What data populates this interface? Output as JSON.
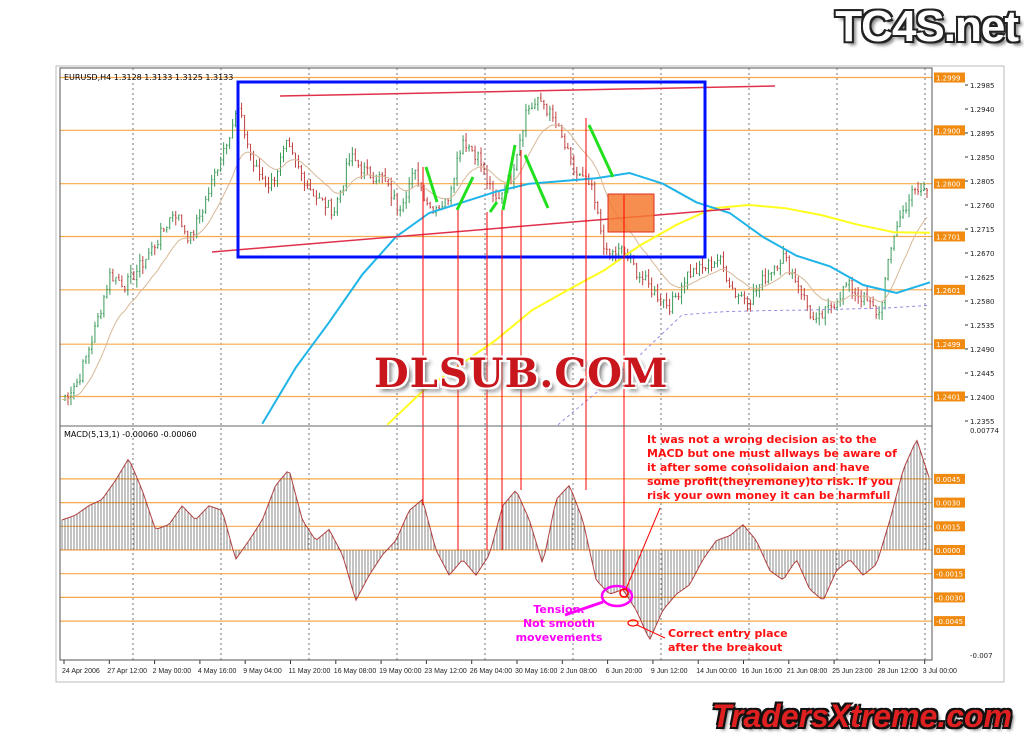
{
  "logos": {
    "top": "TC4S.net",
    "middle": "DLSUB.COM",
    "bottom": "TradersXtreme.com"
  },
  "colors": {
    "bullish": "#3a9a5a",
    "bearish": "#c04040",
    "ma_cyan": "#1fb4e8",
    "ma_yellow": "#ffff20",
    "ma_tan": "#d8b898",
    "ma_purple": "#9a8ae0",
    "level": "#f7a84a",
    "annotation_red": "#ff0000",
    "box_blue": "#0010ff",
    "green_strokes": "#22e020",
    "magenta": "#ff00ff",
    "highlight_box": "#f47a30"
  },
  "chart_data": [
    {
      "type": "candlestick",
      "title": "EURUSD,H4  1.3128 1.3133 1.3125 1.3133",
      "ylim": [
        1.234,
        1.301
      ],
      "y_ticks": [
        "1.2985",
        "1.2940",
        "1.2895",
        "1.2850",
        "1.2805",
        "1.2760",
        "1.2715",
        "1.2670",
        "1.2625",
        "1.2580",
        "1.2535",
        "1.2490",
        "1.2445",
        "1.2400",
        "1.2355"
      ],
      "level_labels": [
        "1.2999",
        "1.2900",
        "1.2800",
        "1.2701",
        "1.2601",
        "1.2499",
        "1.2401"
      ],
      "x_tick_labels": [
        "24 Apr 2006",
        "27 Apr 12:00",
        "2 May 00:00",
        "4 May 16:00",
        "9 May 04:00",
        "11 May 20:00",
        "16 May 08:00",
        "19 May 00:00",
        "23 May 12:00",
        "26 May 04:00",
        "30 May 16:00",
        "2 Jun 08:00",
        "6 Jun 20:00",
        "9 Jun 12:00",
        "14 Jun 00:00",
        "16 Jun 16:00",
        "21 Jun 08:00",
        "25 Jun 23:00",
        "28 Jun 12:00",
        "3 Jul 00:00"
      ],
      "close_samples": [
        1.2395,
        1.243,
        1.252,
        1.263,
        1.261,
        1.265,
        1.2695,
        1.275,
        1.2695,
        1.277,
        1.286,
        1.294,
        1.283,
        1.2795,
        1.287,
        1.2815,
        1.277,
        1.275,
        1.285,
        1.282,
        1.281,
        1.2755,
        1.282,
        1.2755,
        1.2765,
        1.2885,
        1.285,
        1.2765,
        1.281,
        1.294,
        1.2955,
        1.29,
        1.282,
        1.2795,
        1.2665,
        1.2675,
        1.263,
        1.2595,
        1.257,
        1.263,
        1.264,
        1.266,
        1.2595,
        1.2585,
        1.263,
        1.2665,
        1.261,
        1.2535,
        1.257,
        1.261,
        1.2585,
        1.2555,
        1.2715,
        1.278,
        1.279
      ],
      "ma_cyan": [
        null,
        null,
        null,
        null,
        null,
        null,
        1.235,
        1.2455,
        1.254,
        1.263,
        1.27,
        1.2745,
        1.2765,
        1.2785,
        1.28,
        1.2805,
        1.281,
        1.282,
        1.28,
        1.2765,
        1.2745,
        1.27,
        1.2665,
        1.2645,
        1.261,
        1.2595,
        1.2615
      ],
      "ma_yellow": [
        null,
        null,
        null,
        null,
        null,
        null,
        null,
        null,
        null,
        1.2348,
        1.2413,
        1.246,
        1.2507,
        1.2563,
        1.2601,
        1.2638,
        1.2685,
        1.2723,
        1.2754,
        1.276,
        1.2754,
        1.2741,
        1.2723,
        1.2709,
        1.2708
      ],
      "ma_purple": [
        null,
        null,
        null,
        null,
        null,
        null,
        null,
        null,
        null,
        null,
        null,
        null,
        1.2348,
        1.2413,
        1.248,
        1.2554,
        1.256,
        1.2562,
        1.2563,
        1.2565,
        1.2567,
        1.2572
      ]
    },
    {
      "type": "bar",
      "title": "MACD(5,13,1) -0.00060 -0.00060",
      "ylim": [
        -0.007,
        0.00774
      ],
      "y_tick_top": "0.00774",
      "y_tick_bottom": "-0.007",
      "level_labels": [
        "0.0045",
        "0.0030",
        "0.0015",
        "0.0000",
        "-0.0015",
        "-0.0030",
        "-0.0045"
      ],
      "values": [
        0.0019,
        0.0022,
        0.0028,
        0.0032,
        0.0044,
        0.0058,
        0.0038,
        0.0013,
        0.0016,
        0.0028,
        0.0019,
        0.0028,
        0.0025,
        -0.0006,
        0.0006,
        0.0019,
        0.0041,
        0.0051,
        0.0019,
        0.0006,
        0.0013,
        -0.0003,
        -0.0032,
        -0.0016,
        -0.0003,
        0.0006,
        0.0025,
        0.0032,
        0.0,
        -0.0016,
        -0.0006,
        -0.0016,
        -0.0003,
        0.0028,
        0.0038,
        0.0019,
        -0.0009,
        0.0032,
        0.0041,
        0.0019,
        -0.0019,
        -0.0028,
        -0.0025,
        -0.0038,
        -0.0057,
        -0.0038,
        -0.0028,
        -0.0022,
        -0.0006,
        0.0006,
        0.0009,
        0.0016,
        0.0006,
        -0.0013,
        -0.0019,
        -0.0006,
        -0.0025,
        -0.0032,
        -0.0013,
        -0.0006,
        -0.0016,
        -0.0009,
        0.0019,
        0.0051,
        0.007,
        0.0044
      ]
    }
  ],
  "annotations": {
    "main_note": [
      "It was not a wrong decision as to the",
      "MACD but one must allways be aware of",
      "it after some consolidaion and have",
      "some profit(theyremoney)to risk. If you",
      "risk your own money it can be harmfull"
    ],
    "tension": [
      "Tension.",
      "Not smooth movevements"
    ],
    "entry": [
      "Correct entry place",
      "after the breakout"
    ]
  }
}
